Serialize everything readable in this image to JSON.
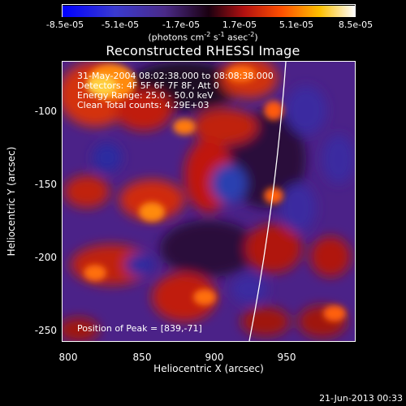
{
  "colorbar": {
    "ticks": [
      "-8.5e-05",
      "-5.1e-05",
      "-1.7e-05",
      "1.7e-05",
      "5.1e-05",
      "8.5e-05"
    ],
    "units_main": "(photons cm",
    "units_exp1": "-2",
    "units_mid": " s",
    "units_exp2": "-1",
    "units_mid2": " asec",
    "units_exp3": "-2",
    "units_end": ")"
  },
  "title": "Reconstructed RHESSI Image",
  "info": {
    "line1": "31-May-2004 08:02:38.000 to 08:08:38.000",
    "line2": "Detectors: 4F 5F 6F 7F 8F, Att 0",
    "line3": "Energy Range: 25.0 - 50.0 keV",
    "line4": "Clean    Total counts: 4.29E+03"
  },
  "peak_label": "Position of Peak = [839,-71]",
  "axes": {
    "xlabel": "Heliocentric X (arcsec)",
    "ylabel": "Heliocentric Y (arcsec)",
    "xticks": [
      "800",
      "850",
      "900",
      "950"
    ],
    "yticks": [
      "-100",
      "-150",
      "-200",
      "-250"
    ]
  },
  "timestamp": "21-Jun-2013 00:33",
  "colors": {
    "background": "#000000",
    "low": "#2a1aa0",
    "mid": "#4a1f7a",
    "high": "#ff4a0a",
    "peak": "#ffff66"
  }
}
